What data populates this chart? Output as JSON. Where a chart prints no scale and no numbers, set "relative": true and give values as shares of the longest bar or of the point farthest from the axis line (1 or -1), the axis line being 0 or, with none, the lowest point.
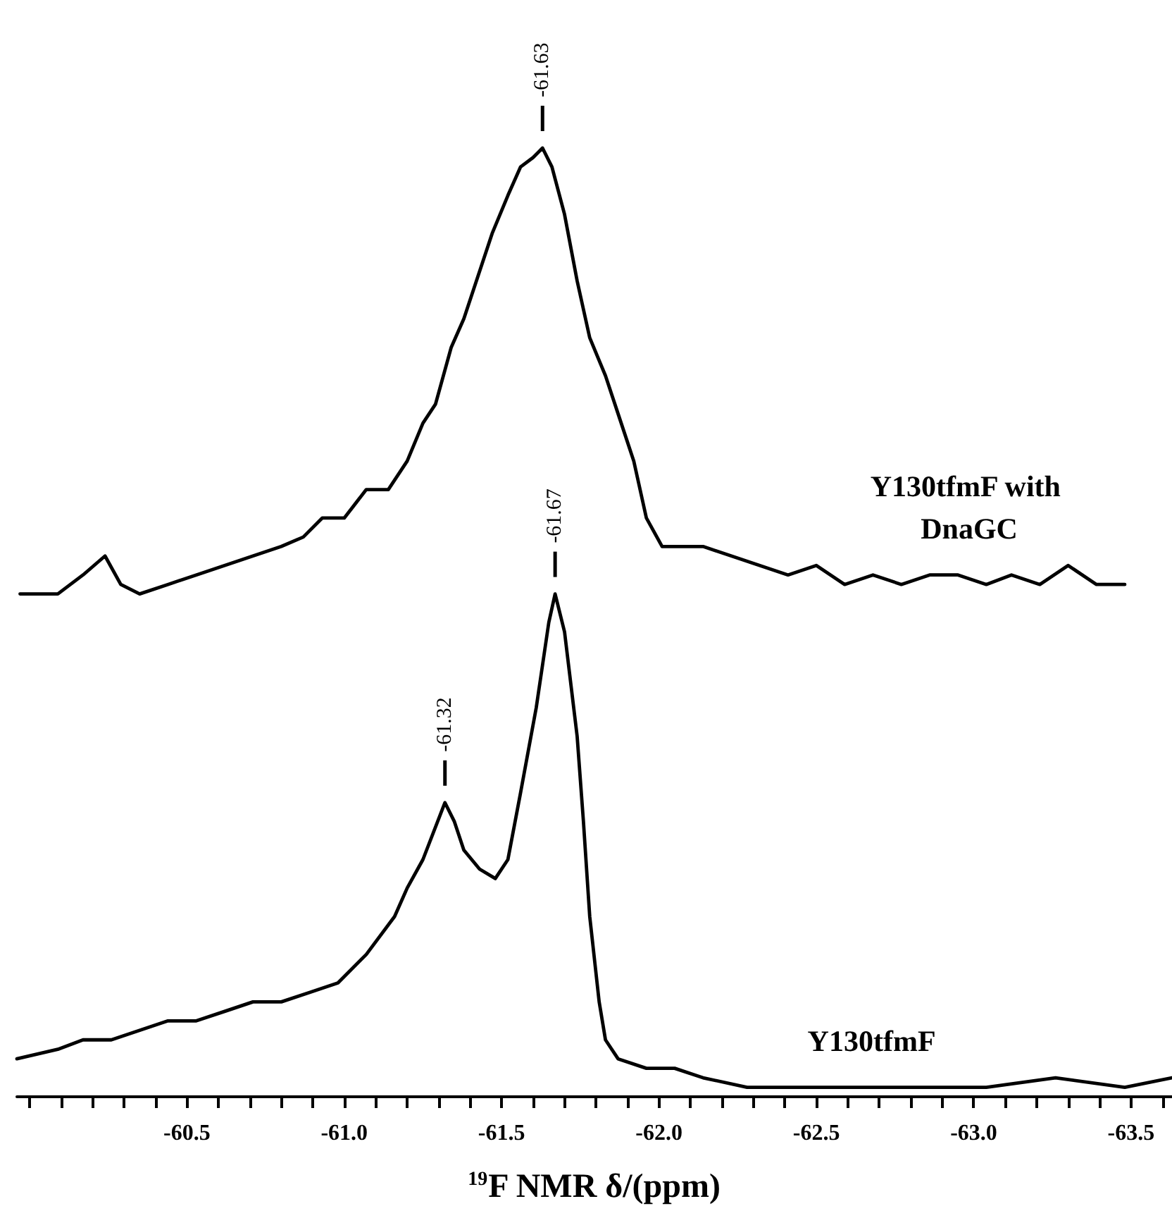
{
  "chart_data": {
    "type": "line",
    "relative": true,
    "xlabel": "$^{19}$F NMR δ/(ppm)",
    "xlim": [
      -59.96,
      -63.63
    ],
    "xticks": [
      {
        "value": -60.0,
        "label": null
      },
      {
        "value": -60.1,
        "label": null
      },
      {
        "value": -60.2,
        "label": null
      },
      {
        "value": -60.3,
        "label": null
      },
      {
        "value": -60.4,
        "label": null
      },
      {
        "value": -60.5,
        "label": "-60.5"
      },
      {
        "value": -60.6,
        "label": null
      },
      {
        "value": -60.7,
        "label": null
      },
      {
        "value": -60.8,
        "label": null
      },
      {
        "value": -60.9,
        "label": null
      },
      {
        "value": -61.0,
        "label": "-61.0"
      },
      {
        "value": -61.1,
        "label": null
      },
      {
        "value": -61.2,
        "label": null
      },
      {
        "value": -61.3,
        "label": null
      },
      {
        "value": -61.4,
        "label": null
      },
      {
        "value": -61.5,
        "label": "-61.5"
      },
      {
        "value": -61.6,
        "label": null
      },
      {
        "value": -61.7,
        "label": null
      },
      {
        "value": -61.8,
        "label": null
      },
      {
        "value": -61.9,
        "label": null
      },
      {
        "value": -62.0,
        "label": "-62.0"
      },
      {
        "value": -62.1,
        "label": null
      },
      {
        "value": -62.2,
        "label": null
      },
      {
        "value": -62.3,
        "label": null
      },
      {
        "value": -62.4,
        "label": null
      },
      {
        "value": -62.5,
        "label": "-62.5"
      },
      {
        "value": -62.6,
        "label": null
      },
      {
        "value": -62.7,
        "label": null
      },
      {
        "value": -62.8,
        "label": null
      },
      {
        "value": -62.9,
        "label": null
      },
      {
        "value": -63.0,
        "label": "-63.0"
      },
      {
        "value": -63.1,
        "label": null
      },
      {
        "value": -63.2,
        "label": null
      },
      {
        "value": -63.3,
        "label": null
      },
      {
        "value": -63.4,
        "label": null
      },
      {
        "value": -63.5,
        "label": "-63.5"
      },
      {
        "value": -63.6,
        "label": null
      }
    ],
    "tick_labels": "x",
    "grid": false,
    "legend": false,
    "marker": "none",
    "line_style": "solid",
    "series": [
      {
        "name": "Y130tfmF with DnaGC",
        "color": "#000000",
        "x": [
          -59.97,
          -60.09,
          -60.17,
          -60.24,
          -60.29,
          -60.35,
          -60.44,
          -60.53,
          -60.62,
          -60.71,
          -60.8,
          -60.87,
          -60.93,
          -61.0,
          -61.07,
          -61.14,
          -61.2,
          -61.25,
          -61.29,
          -61.34,
          -61.38,
          -61.43,
          -61.47,
          -61.52,
          -61.56,
          -61.6,
          -61.63,
          -61.66,
          -61.7,
          -61.74,
          -61.78,
          -61.83,
          -61.87,
          -61.92,
          -61.96,
          -62.01,
          -62.05,
          -62.14,
          -62.23,
          -62.32,
          -62.41,
          -62.5,
          -62.59,
          -62.68,
          -62.77,
          -62.86,
          -62.95,
          -63.04,
          -63.12,
          -63.21,
          -63.3,
          -63.39,
          -63.48
        ],
        "values": [
          0.53,
          0.53,
          0.55,
          0.57,
          0.54,
          0.53,
          0.54,
          0.55,
          0.56,
          0.57,
          0.58,
          0.59,
          0.61,
          0.61,
          0.64,
          0.64,
          0.67,
          0.71,
          0.73,
          0.79,
          0.82,
          0.87,
          0.91,
          0.95,
          0.98,
          0.99,
          1.0,
          0.98,
          0.93,
          0.86,
          0.8,
          0.76,
          0.72,
          0.67,
          0.61,
          0.58,
          0.58,
          0.58,
          0.57,
          0.56,
          0.55,
          0.56,
          0.54,
          0.55,
          0.54,
          0.55,
          0.55,
          0.54,
          0.55,
          0.54,
          0.56,
          0.54,
          0.54
        ]
      },
      {
        "name": "Y130tfmF",
        "color": "#000000",
        "x": [
          -59.96,
          -60.09,
          -60.17,
          -60.26,
          -60.35,
          -60.44,
          -60.53,
          -60.62,
          -60.71,
          -60.8,
          -60.89,
          -60.98,
          -61.07,
          -61.16,
          -61.2,
          -61.25,
          -61.32,
          -61.35,
          -61.38,
          -61.43,
          -61.48,
          -61.52,
          -61.56,
          -61.61,
          -61.65,
          -61.67,
          -61.7,
          -61.74,
          -61.76,
          -61.78,
          -61.81,
          -61.83,
          -61.87,
          -61.96,
          -62.05,
          -62.14,
          -62.28,
          -62.41,
          -62.59,
          -62.81,
          -63.04,
          -63.26,
          -63.48,
          -63.63
        ],
        "values": [
          0.04,
          0.05,
          0.06,
          0.06,
          0.07,
          0.08,
          0.08,
          0.09,
          0.1,
          0.1,
          0.11,
          0.12,
          0.15,
          0.19,
          0.22,
          0.25,
          0.31,
          0.29,
          0.26,
          0.24,
          0.23,
          0.25,
          0.32,
          0.41,
          0.5,
          0.53,
          0.49,
          0.38,
          0.29,
          0.19,
          0.1,
          0.06,
          0.04,
          0.03,
          0.03,
          0.02,
          0.01,
          0.01,
          0.01,
          0.01,
          0.01,
          0.02,
          0.01,
          0.02
        ]
      }
    ],
    "annotations": [
      {
        "text": "-61.63",
        "x": -61.63,
        "y": 1.0
      },
      {
        "text": "-61.67",
        "x": -61.67,
        "y": 0.53
      },
      {
        "text": "-61.32",
        "x": -61.32,
        "y": 0.31
      }
    ]
  }
}
